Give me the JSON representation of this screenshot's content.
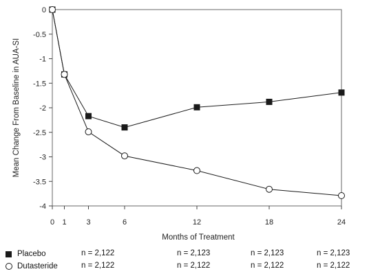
{
  "chart_data": {
    "type": "line",
    "x": [
      0,
      1,
      3,
      6,
      12,
      18,
      24
    ],
    "xlabel": "Months of Treatment",
    "ylabel": "Mean Change From Baseline in AUA-SI",
    "xticks": [
      0,
      1,
      3,
      6,
      12,
      18,
      24
    ],
    "yticks": [
      0,
      -0.5,
      -1,
      -1.5,
      -2,
      -2.5,
      -3,
      -3.5,
      -4
    ],
    "ytick_labels": [
      "0",
      "-0.5",
      "-1",
      "-1.5",
      "-2",
      "-2.5",
      "-3",
      "-3.5",
      "-4"
    ],
    "xlim": [
      0,
      24
    ],
    "ylim": [
      -4,
      0
    ],
    "grid": false,
    "series": [
      {
        "name": "Placebo",
        "marker": "filled-square",
        "color": "#1a1a1a",
        "values": [
          0,
          -1.32,
          -2.17,
          -2.4,
          -1.99,
          -1.88,
          -1.69
        ]
      },
      {
        "name": "Dutasteride",
        "marker": "open-circle",
        "color": "#1a1a1a",
        "values": [
          0,
          -1.32,
          -2.49,
          -2.98,
          -3.28,
          -3.66,
          -3.79
        ]
      }
    ]
  },
  "legend": {
    "placebo": "Placebo",
    "dutasteride": "Dutasteride"
  },
  "sample_sizes": {
    "placebo": [
      "n = 2,122",
      "n = 2,123",
      "n = 2,123",
      "n = 2,123"
    ],
    "dutasteride": [
      "n = 2,122",
      "n = 2,122",
      "n = 2,122",
      "n = 2,122"
    ]
  }
}
